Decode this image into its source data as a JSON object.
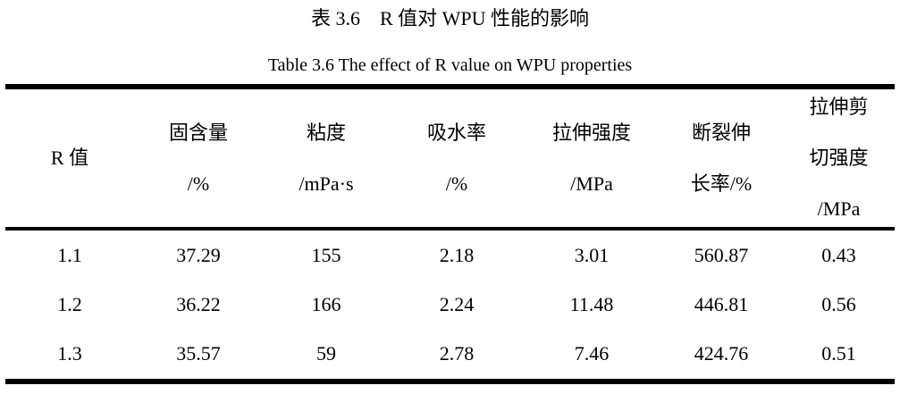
{
  "document": {
    "title_zh": "表 3.6　R 值对 WPU 性能的影响",
    "title_en": "Table 3.6 The effect of R value on WPU properties"
  },
  "table": {
    "columns": [
      {
        "id": "r-value",
        "lines": [
          "R 值"
        ]
      },
      {
        "id": "solid-content",
        "lines": [
          "固含量",
          "/%"
        ]
      },
      {
        "id": "viscosity",
        "lines": [
          "粘度",
          "/mPa·s"
        ]
      },
      {
        "id": "water-absorption",
        "lines": [
          "吸水率",
          "/%"
        ]
      },
      {
        "id": "tensile-strength",
        "lines": [
          "拉伸强度",
          "/MPa"
        ]
      },
      {
        "id": "elongation-at-break",
        "lines": [
          "断裂伸",
          "长率/%"
        ]
      },
      {
        "id": "tensile-shear-strength",
        "lines": [
          "拉伸剪",
          "切强度",
          "/MPa"
        ]
      }
    ],
    "rows": [
      [
        "1.1",
        "37.29",
        "155",
        "2.18",
        "3.01",
        "560.87",
        "0.43"
      ],
      [
        "1.2",
        "36.22",
        "166",
        "2.24",
        "11.48",
        "446.81",
        "0.56"
      ],
      [
        "1.3",
        "35.57",
        "59",
        "2.78",
        "7.46",
        "424.76",
        "0.51"
      ]
    ]
  },
  "chart_data": {
    "type": "table",
    "title": "表 3.6　R 值对 WPU 性能的影响 / Table 3.6 The effect of R value on WPU properties",
    "columns": [
      "R 值",
      "固含量 /%",
      "粘度 /mPa·s",
      "吸水率 /%",
      "拉伸强度 /MPa",
      "断裂伸长率/%",
      "拉伸剪切强度 /MPa"
    ],
    "rows": [
      [
        1.1,
        37.29,
        155,
        2.18,
        3.01,
        560.87,
        0.43
      ],
      [
        1.2,
        36.22,
        166,
        2.24,
        11.48,
        446.81,
        0.56
      ],
      [
        1.3,
        35.57,
        59,
        2.78,
        7.46,
        424.76,
        0.51
      ]
    ]
  }
}
